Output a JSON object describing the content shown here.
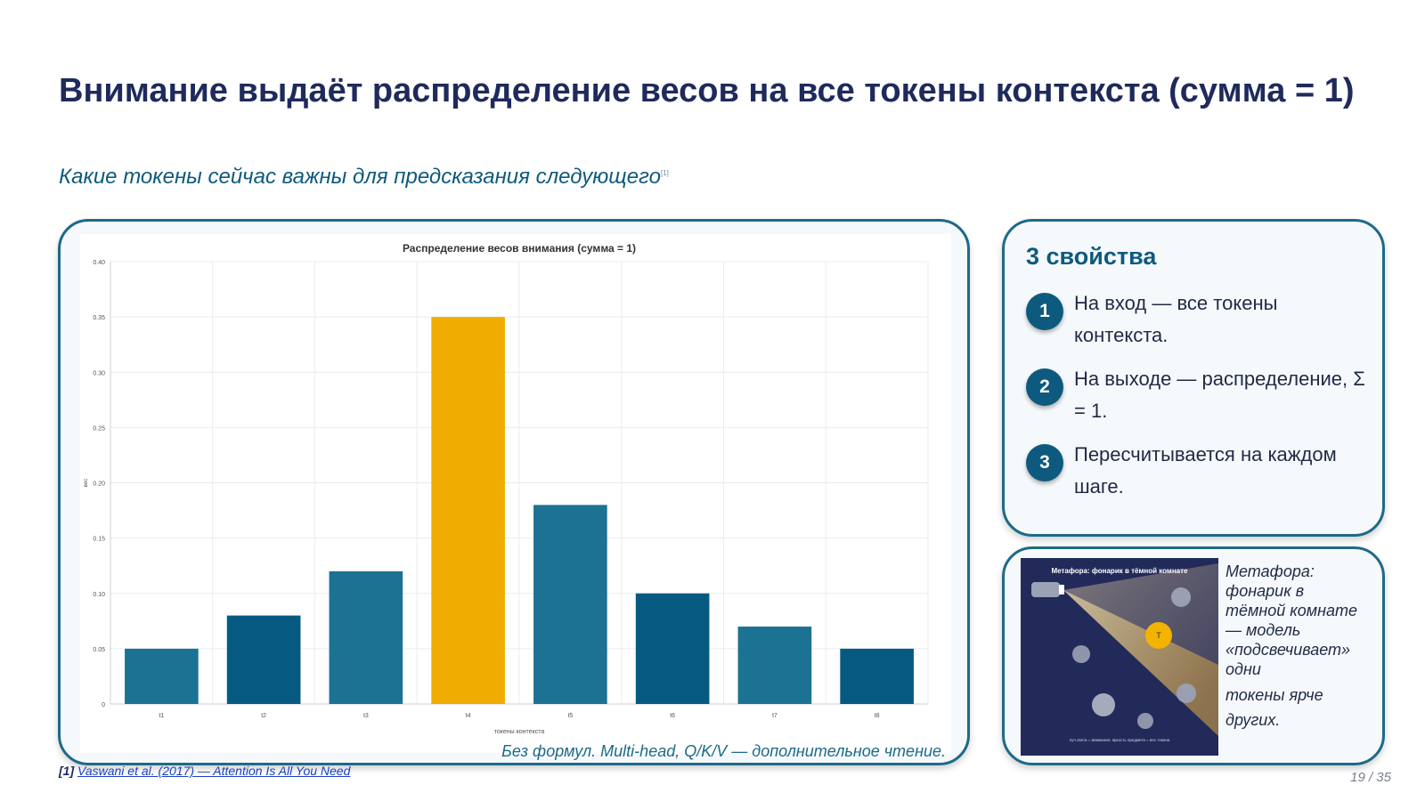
{
  "slide": {
    "title": "Внимание выдаёт распределение весов на все токены контекста (сумма = 1)",
    "subtitle": "Какие токены сейчас важны для предсказания следующего",
    "subtitle_ref": "[1]",
    "page": "19 / 35"
  },
  "chart_card": {
    "note": "Без формул. Multi-head, Q/K/V — дополнительное чтение."
  },
  "chart_data": {
    "type": "bar",
    "title": "Распределение весов внимания (сумма = 1)",
    "xlabel": "токены контекста",
    "ylabel": "вес",
    "categories": [
      "t1",
      "t2",
      "t3",
      "t4",
      "t5",
      "t6",
      "t7",
      "t8"
    ],
    "values": [
      0.05,
      0.08,
      0.12,
      0.35,
      0.18,
      0.1,
      0.07,
      0.05
    ],
    "ylim": [
      0,
      0.4
    ],
    "yticks": [
      "0",
      "0.05",
      "0.10",
      "0.15",
      "0.20",
      "0.25",
      "0.30",
      "0.35",
      "0.40"
    ],
    "grid": true,
    "highlight_index": 3,
    "colors": {
      "highlight": "#f0ad00",
      "dark": "#065a82",
      "light": "#1c7293",
      "grid": "#e8edf1",
      "axis": "#c9d1d8",
      "text": "#555555",
      "title": "#333333"
    }
  },
  "properties": {
    "title": "3 свойства",
    "items": [
      {
        "num": "1",
        "text": "На вход — все токены контекста."
      },
      {
        "num": "2",
        "text": "На выходе — распределение, Σ = 1."
      },
      {
        "num": "3",
        "text": "Пересчитывается на каждом шаге."
      }
    ]
  },
  "metaphor": {
    "image_title": "Метафора: фонарик в тёмной комнате",
    "image_token": "T",
    "image_caption": "луч света = внимание; яркость предмета = вес токена",
    "text_line1": "Метафора: фонарик в тёмной комнате — модель «подсвечивает» одни",
    "text_line2": "токены ярче других."
  },
  "footnote": {
    "ref": "[1]",
    "link_text": "Vaswani et al. (2017) — Attention Is All You Need"
  }
}
